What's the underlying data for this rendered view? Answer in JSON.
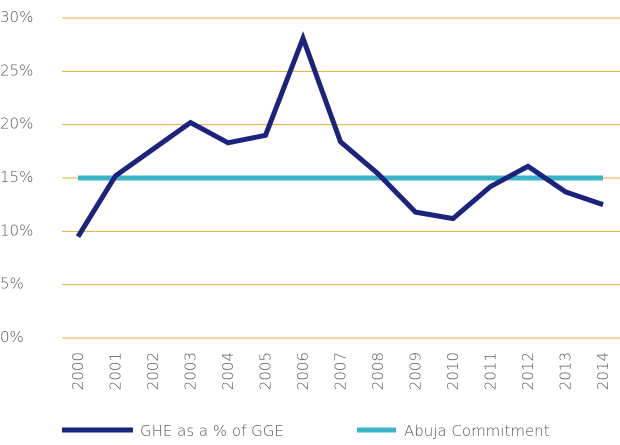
{
  "chart_data": {
    "type": "line",
    "categories": [
      "2000",
      "2001",
      "2002",
      "2003",
      "2004",
      "2005",
      "2006",
      "2007",
      "2008",
      "2009",
      "2010",
      "2011",
      "2012",
      "2013",
      "2014"
    ],
    "series": [
      {
        "name": "GHE as a % of GGE",
        "color": "#1a237e",
        "values": [
          9.5,
          15.2,
          17.7,
          20.2,
          18.3,
          19.0,
          28.1,
          18.4,
          15.4,
          11.8,
          11.2,
          14.2,
          16.1,
          13.7,
          12.5
        ]
      },
      {
        "name": "Abuja Commitment",
        "color": "#3ab5c8",
        "values": [
          15,
          15,
          15,
          15,
          15,
          15,
          15,
          15,
          15,
          15,
          15,
          15,
          15,
          15,
          15
        ]
      }
    ],
    "ylim": [
      0,
      30
    ],
    "yticks": [
      {
        "value": 0,
        "label": "0%"
      },
      {
        "value": 5,
        "label": "5%"
      },
      {
        "value": 10,
        "label": "10%"
      },
      {
        "value": 15,
        "label": "15%"
      },
      {
        "value": 20,
        "label": "20%"
      },
      {
        "value": 25,
        "label": "25%"
      },
      {
        "value": 30,
        "label": "30%"
      }
    ],
    "grid": true,
    "grid_color": "#e8a93a",
    "legend": "bottom"
  }
}
